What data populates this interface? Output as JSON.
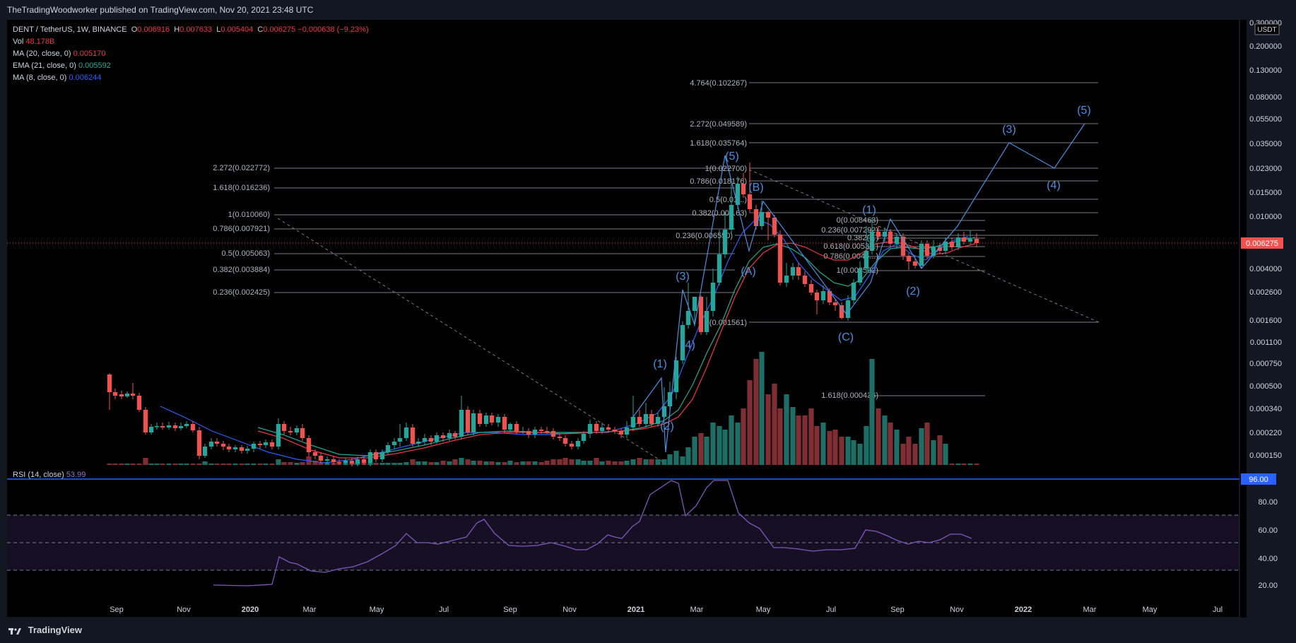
{
  "header": {
    "publisher": "TheTradingWoodworker published on TradingView.com, Nov 20, 2021 23:48 UTC"
  },
  "legend": {
    "symbol": "DENT / TetherUS, 1W, BINANCE",
    "ohlc": {
      "o_label": "O",
      "o": "0.006916",
      "h_label": "H",
      "h": "0.007633",
      "l_label": "L",
      "l": "0.005404",
      "c_label": "C",
      "c": "0.006275",
      "change": "−0.000638 (−9.23%)"
    },
    "vol_label": "Vol",
    "vol": "48.178B",
    "ma20_label": "MA (20, close, 0)",
    "ma20": "0.005170",
    "ema21_label": "EMA (21, close, 0)",
    "ema21": "0.005592",
    "ma8_label": "MA (8, close, 0)",
    "ma8": "0.006244"
  },
  "rsi": {
    "label": "RSI (14, close)",
    "value": "53.99",
    "badge": "96.00"
  },
  "price_axis": {
    "currency": "USDT",
    "current_price": "0.006275",
    "labels": [
      "0.300000",
      "0.200000",
      "0.130000",
      "0.080000",
      "0.055000",
      "0.035000",
      "0.023000",
      "0.015000",
      "0.010000",
      "0.006000",
      "0.004000",
      "0.002600",
      "0.001600",
      "0.001100",
      "0.000750",
      "0.000500",
      "0.000340",
      "0.000220",
      "0.000150"
    ],
    "rsi_labels": [
      "100.00",
      "80.00",
      "60.00",
      "40.00",
      "20.00"
    ]
  },
  "time_axis": [
    "Sep",
    "Nov",
    "2020",
    "Mar",
    "May",
    "Jul",
    "Sep",
    "Nov",
    "2021",
    "Mar",
    "May",
    "Jul",
    "Sep",
    "Nov",
    "2022",
    "Mar",
    "May",
    "Jul"
  ],
  "fib_levels": {
    "left": [
      "2.272(0.022772)",
      "1.618(0.016236)",
      "1(0.010060)",
      "0.786(0.007921)",
      "0.5(0.005063)",
      "0.382(0.003884)",
      "0.236(0.002425)"
    ],
    "middle": [
      "4.764(0.102267)",
      "2.272(0.049589)",
      "1.618(0.035764)",
      "1(0.022700)",
      "0.786(0.018176)",
      "0.5(0.01...)",
      "0.382(0.00...63)",
      "0.236(0.006550)",
      "0(0.001561)"
    ],
    "right": [
      "0(0.008463)",
      "0.236(0.007292)",
      "0.382(...)",
      "0.618(0.0053...)",
      "0.786(0.0045...)",
      "1(0.003502)",
      "1.618(0.000436)"
    ]
  },
  "wave_labels": [
    "(1)",
    "(2)",
    "(3)",
    "(4)",
    "(5)",
    "(A)",
    "(B)",
    "(C)",
    "(1)",
    "(2)",
    "(3)",
    "(4)",
    "(5)"
  ],
  "colors": {
    "bg": "#000000",
    "up": "#26a69a",
    "down": "#ef5350",
    "wave": "#4a90e2",
    "rsi": "#7e57c2"
  },
  "footer": {
    "brand": "TradingView"
  }
}
